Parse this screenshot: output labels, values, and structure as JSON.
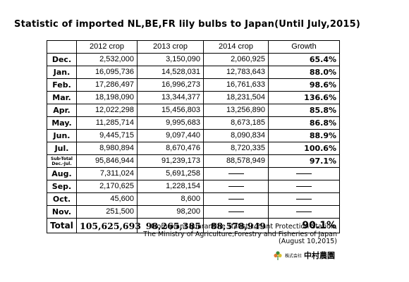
{
  "title": "Statistic of imported NL,BE,FR lily bulbs to Japan(Until July,2015)",
  "table": {
    "headers": [
      "",
      "2012 crop",
      "2013 crop",
      "2014 crop",
      "Growth"
    ],
    "rows": [
      {
        "month": "Dec.",
        "c2012": "2,532,000",
        "c2013": "3,150,090",
        "c2014": "2,060,925",
        "growth": "65.4%"
      },
      {
        "month": "Jan.",
        "c2012": "16,095,736",
        "c2013": "14,528,031",
        "c2014": "12,783,643",
        "growth": "88.0%"
      },
      {
        "month": "Feb.",
        "c2012": "17,286,497",
        "c2013": "16,996,273",
        "c2014": "16,761,633",
        "growth": "98.6%"
      },
      {
        "month": "Mar.",
        "c2012": "18,198,090",
        "c2013": "13,344,377",
        "c2014": "18,231,504",
        "growth": "136.6%"
      },
      {
        "month": "Apr.",
        "c2012": "12,022,298",
        "c2013": "15,456,803",
        "c2014": "13,256,890",
        "growth": "85.8%"
      },
      {
        "month": "May.",
        "c2012": "11,285,714",
        "c2013": "9,995,683",
        "c2014": "8,673,185",
        "growth": "86.8%"
      },
      {
        "month": "Jun.",
        "c2012": "9,445,715",
        "c2013": "9,097,440",
        "c2014": "8,090,834",
        "growth": "88.9%"
      },
      {
        "month": "Jul.",
        "c2012": "8,980,894",
        "c2013": "8,670,476",
        "c2014": "8,720,335",
        "growth": "100.6%"
      }
    ],
    "subtotal": {
      "label_line1": "Sub-Total",
      "label_line2": "Dec.-Jul.",
      "c2012": "95,846,944",
      "c2013": "91,239,173",
      "c2014": "88,578,949",
      "growth": "97.1%"
    },
    "later_rows": [
      {
        "month": "Aug.",
        "c2012": "7,311,024",
        "c2013": "5,691,258"
      },
      {
        "month": "Sep.",
        "c2012": "2,170,625",
        "c2013": "1,228,154"
      },
      {
        "month": "Oct.",
        "c2012": "45,600",
        "c2013": "8,600"
      },
      {
        "month": "Nov.",
        "c2012": "251,500",
        "c2013": "98,200"
      }
    ],
    "total": {
      "label": "Total",
      "c2012": "105,625,693",
      "c2013": "98,265,385",
      "c2014": "88,578,949",
      "growth": "90.1%"
    }
  },
  "source": {
    "line1": "From plant quarantine statistic,Plant Protection Station,",
    "line2": "The Ministry of Agriculture,Forestry and Fisheries of Japan",
    "line3": "(August 10,2015)"
  },
  "logo": {
    "small_text": "株式会社",
    "name": "中村農園",
    "accent_color": "#3a8a3a"
  }
}
